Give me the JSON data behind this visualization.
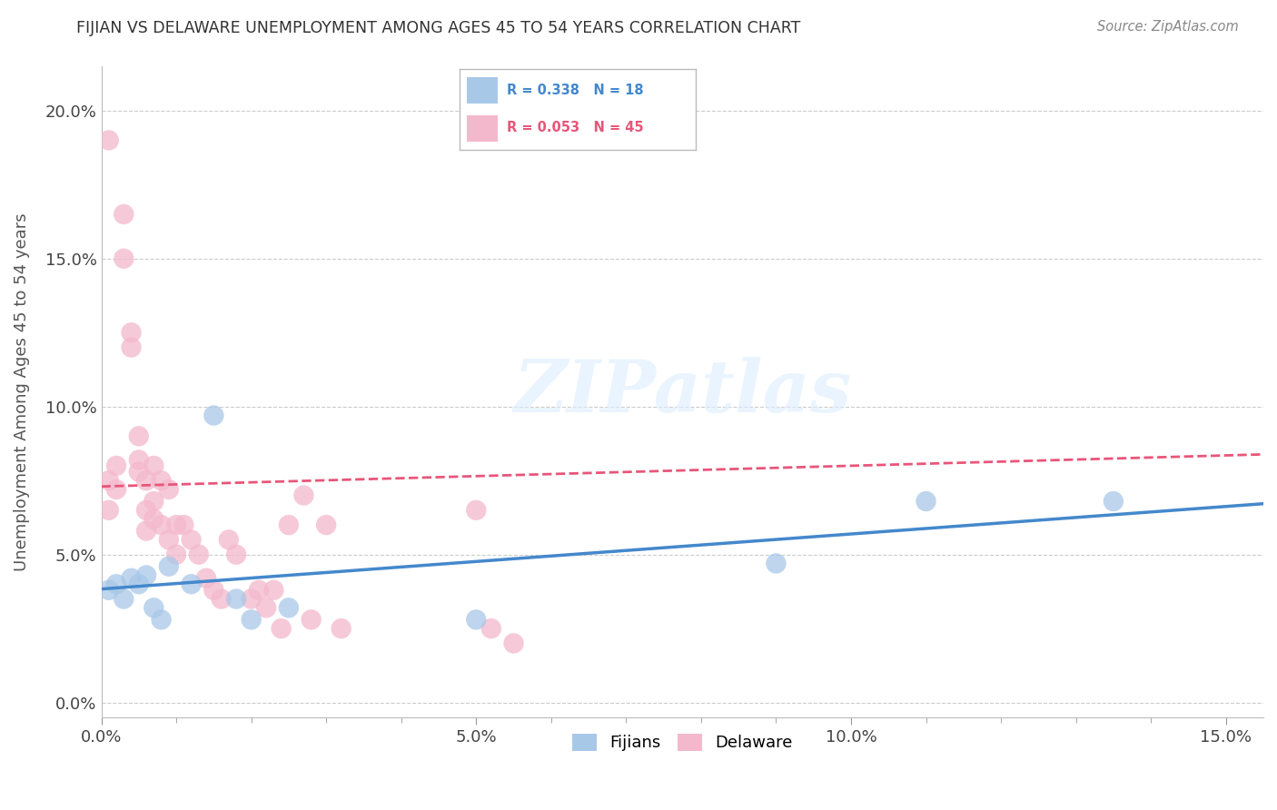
{
  "title": "FIJIAN VS DELAWARE UNEMPLOYMENT AMONG AGES 45 TO 54 YEARS CORRELATION CHART",
  "source": "Source: ZipAtlas.com",
  "ylabel": "Unemployment Among Ages 45 to 54 years",
  "fijian_R": 0.338,
  "fijian_N": 18,
  "delaware_R": 0.053,
  "delaware_N": 45,
  "fijian_color": "#a8c8e8",
  "delaware_color": "#f4b8cc",
  "fijian_line_color": "#4488cc",
  "delaware_line_color": "#e8567a",
  "xlim": [
    0.0,
    0.155
  ],
  "ylim": [
    -0.005,
    0.215
  ],
  "background_color": "#ffffff",
  "watermark_text": "ZIPatlas",
  "fijian_x": [
    0.001,
    0.002,
    0.003,
    0.004,
    0.005,
    0.006,
    0.007,
    0.008,
    0.009,
    0.012,
    0.015,
    0.018,
    0.02,
    0.025,
    0.05,
    0.09,
    0.11,
    0.135
  ],
  "fijian_y": [
    0.038,
    0.04,
    0.035,
    0.042,
    0.04,
    0.043,
    0.032,
    0.028,
    0.046,
    0.04,
    0.097,
    0.035,
    0.028,
    0.032,
    0.028,
    0.047,
    0.068,
    0.068
  ],
  "delaware_x": [
    0.001,
    0.001,
    0.001,
    0.002,
    0.002,
    0.003,
    0.003,
    0.004,
    0.004,
    0.005,
    0.005,
    0.005,
    0.006,
    0.006,
    0.006,
    0.007,
    0.007,
    0.007,
    0.008,
    0.008,
    0.009,
    0.009,
    0.01,
    0.01,
    0.011,
    0.012,
    0.013,
    0.014,
    0.015,
    0.016,
    0.017,
    0.018,
    0.02,
    0.021,
    0.022,
    0.023,
    0.024,
    0.025,
    0.027,
    0.028,
    0.03,
    0.032,
    0.05,
    0.052,
    0.055
  ],
  "delaware_y": [
    0.19,
    0.075,
    0.065,
    0.08,
    0.072,
    0.165,
    0.15,
    0.125,
    0.12,
    0.09,
    0.082,
    0.078,
    0.075,
    0.065,
    0.058,
    0.08,
    0.068,
    0.062,
    0.075,
    0.06,
    0.072,
    0.055,
    0.06,
    0.05,
    0.06,
    0.055,
    0.05,
    0.042,
    0.038,
    0.035,
    0.055,
    0.05,
    0.035,
    0.038,
    0.032,
    0.038,
    0.025,
    0.06,
    0.07,
    0.028,
    0.06,
    0.025,
    0.065,
    0.025,
    0.02
  ],
  "xticks": [
    0.0,
    0.05,
    0.1,
    0.15
  ],
  "yticks": [
    0.0,
    0.05,
    0.1,
    0.15,
    0.2
  ],
  "minor_xticks": [
    0.0,
    0.01,
    0.02,
    0.03,
    0.04,
    0.05,
    0.06,
    0.07,
    0.08,
    0.09,
    0.1,
    0.11,
    0.12,
    0.13,
    0.14,
    0.15
  ],
  "minor_yticks": [
    0.0,
    0.025,
    0.05,
    0.075,
    0.1,
    0.125,
    0.15,
    0.175,
    0.2
  ]
}
